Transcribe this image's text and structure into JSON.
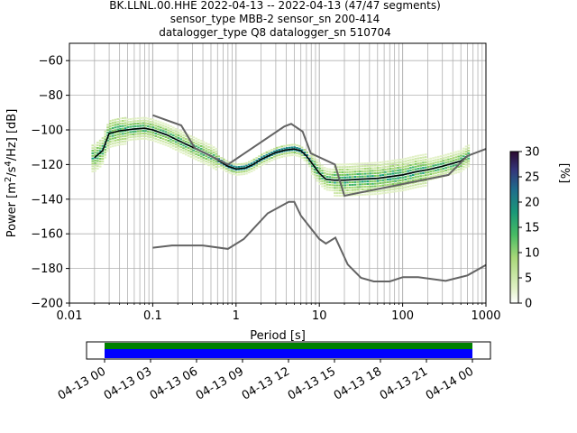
{
  "header": {
    "title_line1": "BK.LLNL.00.HHE   2022-04-13 -- 2022-04-13  (47/47 segments)",
    "title_line2": "sensor_type MBB-2 sensor_sn 200-414",
    "title_line3": "datalogger_type Q8 datalogger_sn 510704"
  },
  "colorbar": {
    "label": "[%]",
    "ticks": [
      "0",
      "5",
      "10",
      "15",
      "20",
      "25",
      "30"
    ],
    "colormap": [
      "#ffffff",
      "#c8e6a6",
      "#7ccc58",
      "#24b06a",
      "#1a8e86",
      "#284f8a",
      "#3a1858",
      "#2a0a30"
    ]
  },
  "timeline": {
    "ticks": [
      "04-13 00",
      "04-13 03",
      "04-13 06",
      "04-13 09",
      "04-13 12",
      "04-13 15",
      "04-13 18",
      "04-13 21",
      "04-14 00"
    ],
    "bar_colors": {
      "data": "#0000ff",
      "coverage": "#008000"
    }
  },
  "chart_data": {
    "type": "line",
    "title": "BK.LLNL.00.HHE   2022-04-13 -- 2022-04-13  (47/47 segments)",
    "xlabel": "Period [s]",
    "ylabel": "Power [m^2/s^4/Hz] [dB]",
    "xscale": "log",
    "xlim": [
      0.01,
      1000
    ],
    "ylim": [
      -200,
      -50
    ],
    "xticks": [
      "0.01",
      "0.1",
      "1",
      "10",
      "100",
      "1000"
    ],
    "yticks": [
      "−200",
      "−180",
      "−160",
      "−140",
      "−120",
      "−100",
      "−80",
      "−60"
    ],
    "grid": true,
    "series": [
      {
        "name": "",
        "color": "#000000",
        "x": [
          0.02,
          0.025,
          0.03,
          0.04,
          0.06,
          0.08,
          0.1,
          0.15,
          0.2,
          0.3,
          0.5,
          0.8,
          1.0,
          1.3,
          1.6,
          2.0,
          3.0,
          4.0,
          5.0,
          6.0,
          7.0,
          10.0,
          12.0,
          15.0,
          20.0,
          30.0,
          50.0,
          100.0,
          150.0,
          200.0,
          300.0,
          500.0,
          600.0
        ],
        "y": [
          -116,
          -112,
          -102,
          -100.5,
          -99.5,
          -99,
          -100,
          -103,
          -106,
          -110,
          -115,
          -121,
          -122.5,
          -122,
          -120,
          -117,
          -113,
          -111.5,
          -111,
          -112,
          -115,
          -125,
          -128.5,
          -129,
          -129,
          -128.5,
          -128,
          -126,
          -124,
          -123,
          -121,
          -118,
          -115
        ]
      },
      {
        "name": "",
        "color": "#646464",
        "x": [
          0.1,
          0.22,
          0.32,
          0.8,
          3.8,
          4.6,
          6.3,
          7.9,
          15.4,
          20.0,
          354.8,
          600.0,
          1000.0
        ],
        "y": [
          -91.5,
          -97.4,
          -110.5,
          -120,
          -98,
          -96.5,
          -101,
          -113.5,
          -120,
          -138,
          -126,
          -115,
          -111
        ]
      },
      {
        "name": "",
        "color": "#646464",
        "x": [
          0.1,
          0.17,
          0.4,
          0.8,
          1.24,
          2.4,
          4.3,
          5.0,
          6.0,
          10.0,
          12.0,
          15.6,
          21.9,
          31.6,
          45.0,
          70.0,
          101.0,
          154.0,
          328.0,
          600.0,
          1000.0
        ],
        "y": [
          -168,
          -166.7,
          -166.7,
          -168.7,
          -163,
          -148.2,
          -141.5,
          -141.5,
          -149.5,
          -163,
          -165.6,
          -162.2,
          -177.7,
          -185.4,
          -187.5,
          -187.5,
          -185,
          -185,
          -187.2,
          -184,
          -178
        ]
      }
    ]
  }
}
